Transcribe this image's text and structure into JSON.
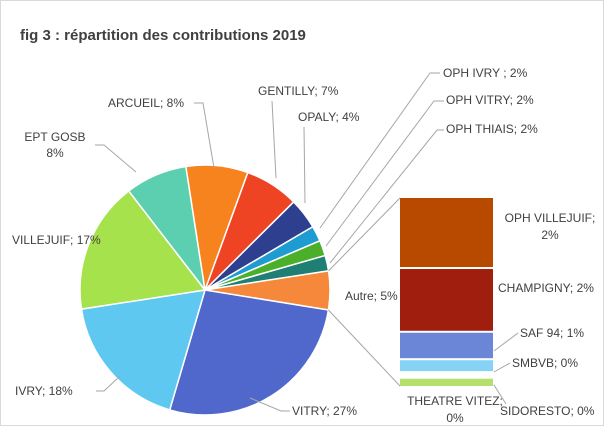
{
  "chart_data": {
    "type": "pie-of-bar",
    "title": "fig 3 : répartition des contributions 2019",
    "pie": {
      "values": [
        7,
        4,
        2,
        2,
        2,
        5,
        27,
        18,
        17,
        8,
        8
      ],
      "value_labels": [
        "GENTILLY; 7%",
        "OPALY; 4%",
        "OPH IVRY ; 2%",
        "OPH VITRY; 2%",
        "OPH THIAIS; 2%",
        "Autre; 5%",
        "VITRY; 27%",
        "IVRY; 18%",
        "VILLEJUIF; 17%",
        [
          "EPT  GOSB",
          "8%"
        ],
        "ARCUEIL; 8%"
      ],
      "colors": [
        "#ee4423",
        "#2e3f8f",
        "#1e9bd0",
        "#4caf29",
        "#1f7f72",
        "#f5883a",
        "#5068cc",
        "#5fc8f0",
        "#a6e24c",
        "#5ccfb0",
        "#f6831e"
      ]
    },
    "bar": {
      "values": [
        1.9,
        1.7,
        0.7,
        0.3,
        0.1,
        0.2
      ],
      "value_labels": [
        [
          "OPH VILLEJUIF;",
          "2%"
        ],
        "CHAMPIGNY; 2%",
        "SAF 94; 1%",
        "SMBVB; 0%",
        [
          "THEATRE VITEZ;",
          "0%"
        ],
        "SIDORESTO; 0%"
      ],
      "colors": [
        "#b84a00",
        "#a01e0e",
        "#6b86d6",
        "#86d3f5",
        "#ffffff",
        "#b5e06b"
      ]
    }
  }
}
